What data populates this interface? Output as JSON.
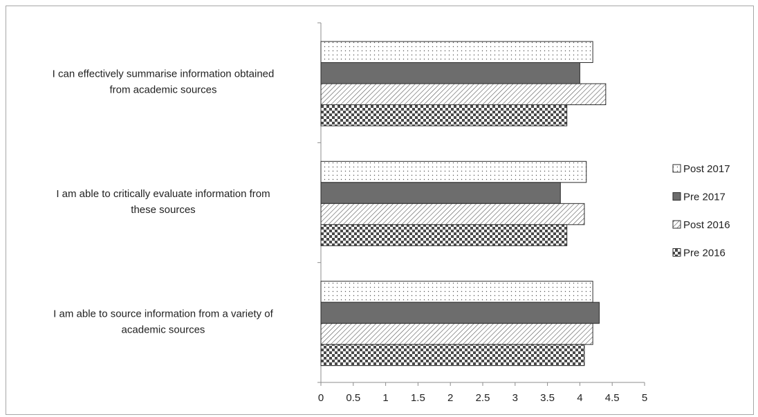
{
  "chart_data": {
    "type": "bar",
    "orientation": "horizontal",
    "categories": [
      "I can effectively summarise information obtained from academic sources",
      "I am able to critically evaluate information from these sources",
      "I am able to source information from a variety of academic sources"
    ],
    "category_lines": [
      [
        "I can effectively summarise information obtained",
        "from academic sources"
      ],
      [
        "I am able to critically evaluate information from",
        "these sources"
      ],
      [
        "I am able to source information from a variety of",
        "academic sources"
      ]
    ],
    "series": [
      {
        "name": "Post 2017",
        "pattern": "dots",
        "values": [
          4.2,
          4.1,
          4.2
        ]
      },
      {
        "name": "Pre 2017",
        "pattern": "solid",
        "color": "#6d6d6d",
        "values": [
          4.0,
          3.7,
          4.3
        ]
      },
      {
        "name": "Post 2016",
        "pattern": "diagonal",
        "values": [
          4.4,
          4.07,
          4.2
        ]
      },
      {
        "name": "Pre 2016",
        "pattern": "checker",
        "values": [
          3.8,
          3.8,
          4.07
        ]
      }
    ],
    "xlim": [
      0,
      5
    ],
    "xticks": [
      "0",
      "0.5",
      "1",
      "1.5",
      "2",
      "2.5",
      "3",
      "3.5",
      "4",
      "4.5",
      "5"
    ],
    "title": "",
    "xlabel": "",
    "ylabel": "",
    "grid": false,
    "legend_position": "right"
  }
}
